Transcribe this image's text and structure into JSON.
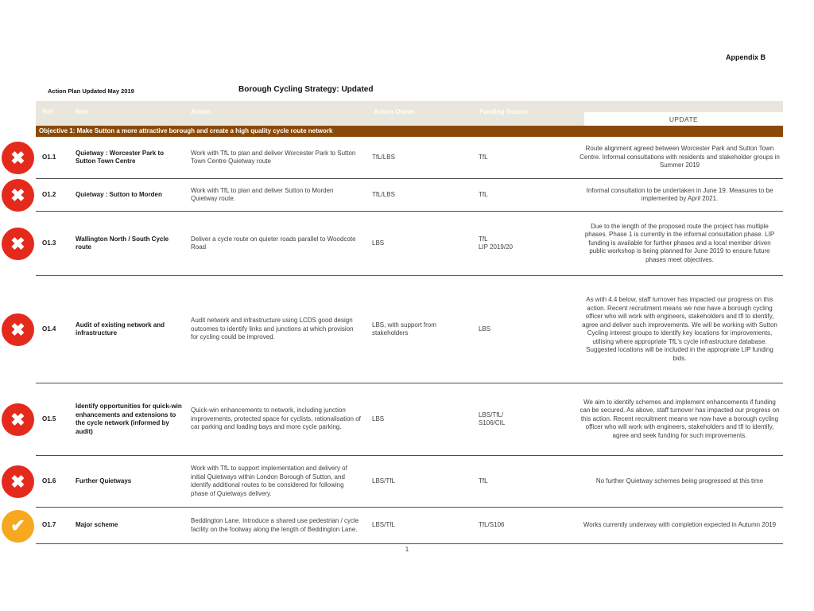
{
  "page": {
    "appendix": "Appendix B",
    "updated_label": "Action Plan Updated May 2019",
    "title": "Borough Cycling Strategy: Updated",
    "page_number": "1"
  },
  "colors": {
    "banner": "#8C4A08",
    "header_band": "#E9E6DD",
    "fail": "#E42A1D",
    "pass": "#F6A91F"
  },
  "table": {
    "headers": {
      "ref": "Ref.",
      "item": "Item",
      "action": "Action",
      "owner": "Action Owner",
      "funding": "Funding Source",
      "update": "UPDATE"
    },
    "objective": "Objective 1: Make Sutton a more attractive borough and create a high quality cycle route network",
    "status_glyphs": {
      "fail": "✖",
      "pass": "✔"
    },
    "rows": [
      {
        "status": "fail",
        "ref": "O1.1",
        "item": "Quietway : Worcester Park to Sutton Town Centre",
        "action": "Work with TfL to plan and deliver Worcester Park to Sutton Town Centre Quietway route",
        "owner": "TfL/LBS",
        "funding": "TfL",
        "update": "Route alignment agreed between Worcester Park and Sutton Town Centre. Informal consultations with residents and stakeholder groups in Summer 2019"
      },
      {
        "status": "fail",
        "ref": "O1.2",
        "item": "Quietway : Sutton to Morden",
        "action": "Work with TfL to plan and deliver Sutton to Morden Quietway route.",
        "owner": "TfL/LBS",
        "funding": "TfL",
        "update": "Informal consultation to be undertaken in June 19. Measures to be implemented by April 2021."
      },
      {
        "status": "fail",
        "ref": "O1.3",
        "item": "Wallington North / South Cycle route",
        "action": "Deliver a cycle route on quieter roads parallel to Woodcote Road",
        "owner": "LBS",
        "funding": "TfL\nLIP 2019/20",
        "update": "Due to the length of the proposed route the project has multiple phases. Phase 1 is currently in the informal consultation phase. LIP funding is available for further phases and a local member driven public workshop is being planned for June 2019 to ensure future phases meet objectives."
      },
      {
        "status": "fail",
        "ref": "O1.4",
        "item": "Audit of existing network and infrastructure",
        "action": "Audit network and infrastructure using LCDS good design outcomes to identify links and junctions at which provision for cycling could be improved.",
        "owner": "LBS, with support from stakeholders",
        "funding": "LBS",
        "update": "As with 4.4 below, staff turnover has impacted our progress on this action. Recent recruitment means we now have a borough cycling officer who will work with engineers, stakeholders and tfl to identify, agree and deliver such improvements. We will be working with Sutton Cycling interest groups to identify key locations for improvements, utilising where appropriate TfL's cycle infrastructure database. Suggested locations will be included in the appropriate LIP funding bids."
      },
      {
        "status": "fail",
        "ref": "O1.5",
        "item": "Identify opportunities for quick-win enhancements and extensions to the cycle network (informed by audit)",
        "action": "Quick-win enhancements to network, including junction improvements, protected space for cyclists, rationalisation of car parking and loading bays and more cycle parking.",
        "owner": "LBS",
        "funding": "LBS/TfL/\nS106/CIL",
        "update": "We aim to identify schemes and implement enhancements if funding can be secured. As above, staff turnover has impacted our progress on this action. Recent recruitment means we now have a borough cycling officer who will work with engineers, stakeholders and tfl to identify, agree and seek funding for such improvements."
      },
      {
        "status": "fail",
        "ref": "O1.6",
        "item": "Further Quietways",
        "action": "Work with TfL to support implementation and delivery of initial Quietways within London Borough of Sutton, and identify additional routes to be considered for following phase of Quietways delivery.",
        "owner": "LBS/TfL",
        "funding": "TfL",
        "update": "No further Quietway schemes being progressed at this time"
      },
      {
        "status": "pass",
        "ref": "O1.7",
        "item": "Major scheme",
        "action": "Beddington Lane. Introduce a shared use pedestrian / cycle facility on the footway along the length of Beddington Lane.",
        "owner": "LBS/TfL",
        "funding": "TfL/S106",
        "update": "Works currently underway with completion expected in Autumn 2019"
      }
    ]
  }
}
